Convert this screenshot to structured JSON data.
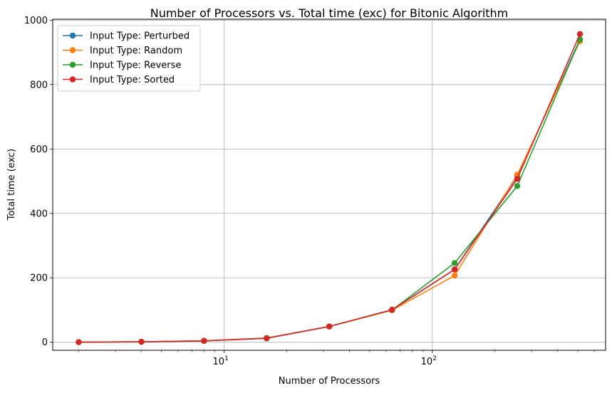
{
  "chart_data": {
    "type": "line",
    "title": "Number of Processors vs. Total time (exc) for Bitonic Algorithm",
    "xlabel": "Number of Processors",
    "ylabel": "Total time (exc)",
    "xscale": "log",
    "xlim": [
      1.5,
      680
    ],
    "ylim": [
      -25,
      1003
    ],
    "grid": true,
    "legend_position": "top-left",
    "x": [
      2,
      4,
      8,
      16,
      32,
      64,
      128,
      256,
      512
    ],
    "x_ticks": [
      {
        "value": 10,
        "base": "10",
        "exp": "1"
      },
      {
        "value": 100,
        "base": "10",
        "exp": "2"
      }
    ],
    "y_ticks": [
      0,
      200,
      400,
      600,
      800,
      1000
    ],
    "series": [
      {
        "name": "Input Type: Perturbed",
        "color": "#1f77b4",
        "values": [
          0.3,
          1.2,
          4,
          12,
          49,
          100,
          226,
          515,
          940
        ]
      },
      {
        "name": "Input Type: Random",
        "color": "#ff7f0e",
        "values": [
          0.3,
          1.3,
          4.2,
          12.5,
          49,
          99,
          207,
          520,
          935
        ]
      },
      {
        "name": "Input Type: Reverse",
        "color": "#2ca02c",
        "values": [
          0.3,
          1.3,
          4.2,
          13,
          49,
          100,
          246,
          485,
          940
        ]
      },
      {
        "name": "Input Type: Sorted",
        "color": "#d62728",
        "values": [
          0.3,
          1.4,
          4.5,
          12.5,
          49,
          101,
          226,
          507,
          957
        ]
      }
    ]
  }
}
